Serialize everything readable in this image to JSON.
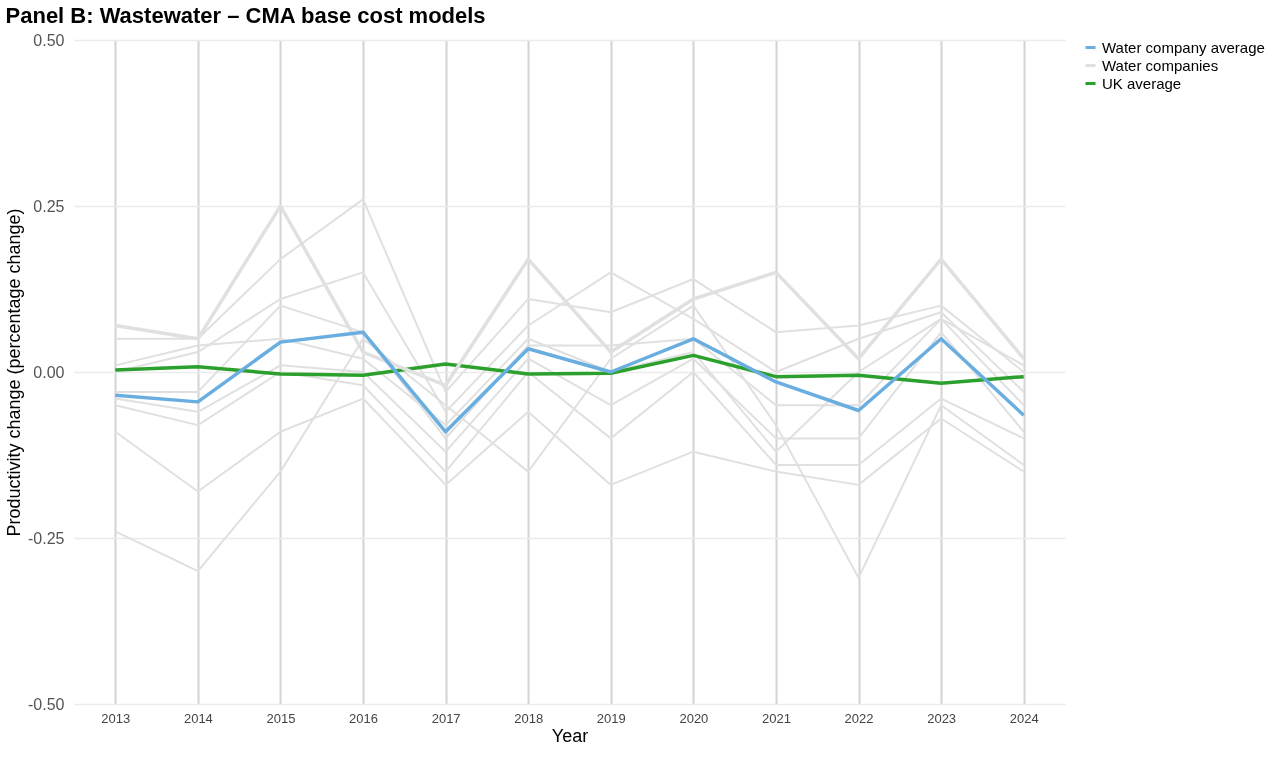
{
  "chart_data": {
    "type": "line",
    "title": "Panel B: Wastewater – CMA base cost models",
    "xlabel": "Year",
    "ylabel": "Productivity change (percentage change)",
    "categories": [
      "2013",
      "2014",
      "2015",
      "2016",
      "2017",
      "2018",
      "2019",
      "2020",
      "2021",
      "2022",
      "2023",
      "2024"
    ],
    "ylim": [
      -0.5,
      0.5
    ],
    "yticks": [
      {
        "value": -0.5,
        "label": "-0.50"
      },
      {
        "value": -0.25,
        "label": "-0.25"
      },
      {
        "value": 0,
        "label": "0.00"
      },
      {
        "value": 0.25,
        "label": "0.25"
      },
      {
        "value": 0.5,
        "label": "0.50"
      }
    ],
    "grid": true,
    "legend": "right",
    "line_style": "solid",
    "marker": "none",
    "series": [
      {
        "name": "Water company average",
        "color": "#6aaee0",
        "values": [
          -0.035,
          -0.045,
          0.045,
          0.06,
          -0.09,
          0.035,
          0.0,
          0.05,
          -0.015,
          -0.058,
          0.05,
          -0.065
        ]
      },
      {
        "name": "Water companies",
        "color": "#e0e0e0",
        "values": [
          0.07,
          0.05,
          0.25,
          0.03,
          -0.02,
          0.17,
          0.03,
          0.11,
          0.15,
          0.02,
          0.17,
          0.02
        ]
      },
      {
        "name": "UK average",
        "color": "#2ca02c",
        "values": [
          0.003,
          0.008,
          -0.003,
          -0.005,
          0.012,
          -0.003,
          -0.002,
          0.025,
          -0.007,
          -0.005,
          -0.017,
          -0.007
        ]
      },
      {
        "color": "#e0e0e0",
        "values": [
          0.05,
          0.05,
          0.17,
          0.26,
          -0.03,
          0.11,
          0.09,
          0.14,
          0.06,
          0.07,
          0.1,
          0.0
        ]
      },
      {
        "color": "#e0e0e0",
        "values": [
          0.0,
          0.03,
          0.11,
          0.15,
          -0.06,
          0.07,
          0.15,
          0.08,
          0.0,
          0.05,
          0.09,
          -0.03
        ]
      },
      {
        "color": "#e0e0e0",
        "values": [
          -0.03,
          -0.03,
          0.1,
          0.06,
          -0.1,
          0.04,
          0.04,
          0.05,
          -0.05,
          -0.05,
          0.08,
          -0.05
        ]
      },
      {
        "color": "#e0e0e0",
        "values": [
          -0.04,
          -0.06,
          0.01,
          0.0,
          -0.12,
          0.02,
          -0.05,
          0.02,
          -0.1,
          -0.1,
          0.06,
          -0.09
        ]
      },
      {
        "color": "#e0e0e0",
        "values": [
          -0.05,
          -0.08,
          0.0,
          -0.02,
          -0.15,
          0.0,
          -0.1,
          0.0,
          -0.14,
          -0.14,
          -0.04,
          -0.1
        ]
      },
      {
        "color": "#e0e0e0",
        "values": [
          -0.09,
          -0.18,
          -0.09,
          -0.04,
          -0.17,
          -0.06,
          -0.17,
          -0.12,
          -0.15,
          -0.17,
          -0.07,
          -0.15
        ]
      },
      {
        "color": "#e0e0e0",
        "values": [
          -0.24,
          -0.3,
          -0.15,
          0.05,
          -0.05,
          -0.15,
          0.02,
          0.1,
          -0.08,
          -0.31,
          -0.05,
          -0.14
        ]
      },
      {
        "color": "#e0e0e0",
        "values": [
          0.01,
          0.04,
          0.05,
          0.02,
          -0.08,
          0.05,
          0.0,
          0.03,
          -0.12,
          0.0,
          0.08,
          0.01
        ]
      }
    ]
  }
}
